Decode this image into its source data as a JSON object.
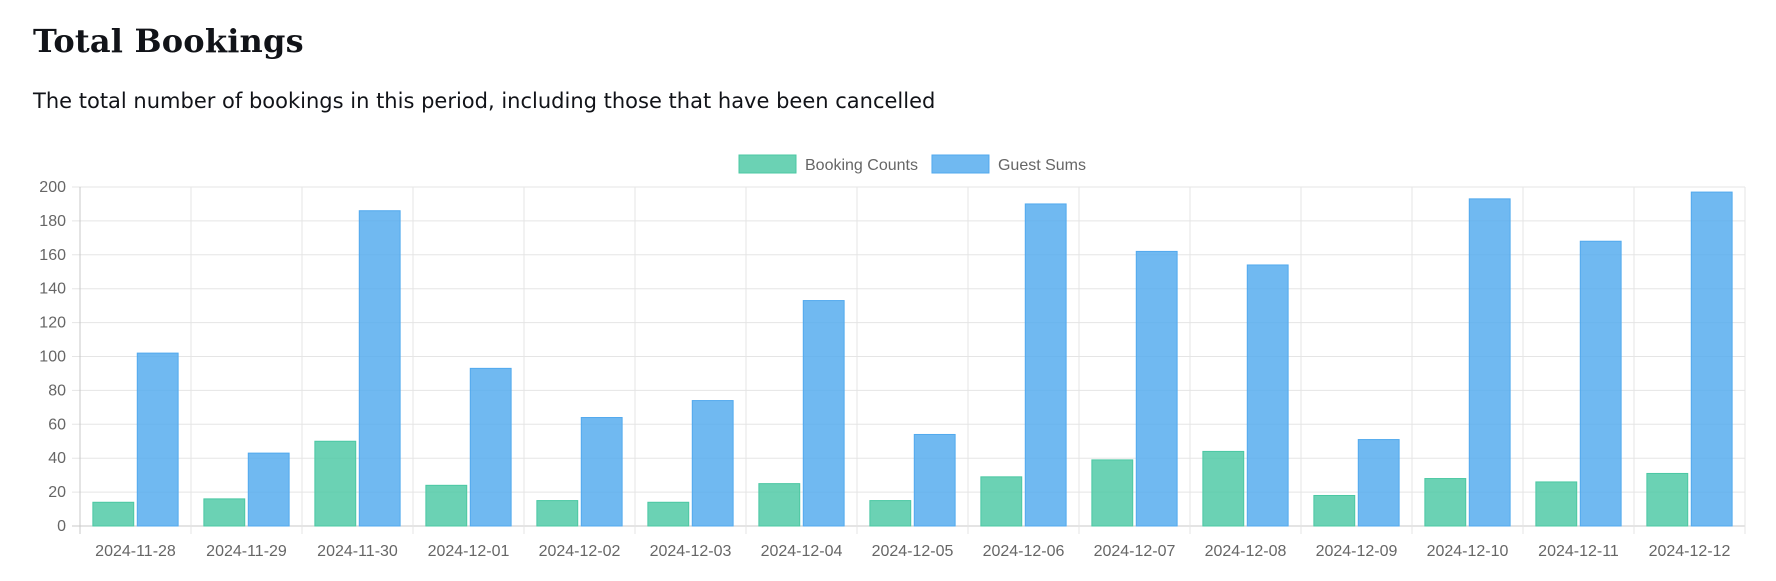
{
  "header": {
    "title": "Total Bookings",
    "subtitle": "The total number of bookings in this period, including those that have been cancelled"
  },
  "chart_data": {
    "type": "bar",
    "categories": [
      "2024-11-28",
      "2024-11-29",
      "2024-11-30",
      "2024-12-01",
      "2024-12-02",
      "2024-12-03",
      "2024-12-04",
      "2024-12-05",
      "2024-12-06",
      "2024-12-07",
      "2024-12-08",
      "2024-12-09",
      "2024-12-10",
      "2024-12-11",
      "2024-12-12"
    ],
    "series": [
      {
        "name": "Booking Counts",
        "values": [
          14,
          16,
          50,
          24,
          15,
          14,
          25,
          15,
          29,
          39,
          44,
          18,
          28,
          26,
          31
        ],
        "color": "#4bc8a3"
      },
      {
        "name": "Guest Sums",
        "values": [
          102,
          43,
          186,
          93,
          64,
          74,
          133,
          54,
          190,
          162,
          154,
          51,
          193,
          168,
          197
        ],
        "color": "#51a9ee"
      }
    ],
    "yticks": [
      0,
      20,
      40,
      60,
      80,
      100,
      120,
      140,
      160,
      180,
      200
    ],
    "ylim": [
      0,
      200
    ],
    "grid": true,
    "legend": "top-center"
  }
}
